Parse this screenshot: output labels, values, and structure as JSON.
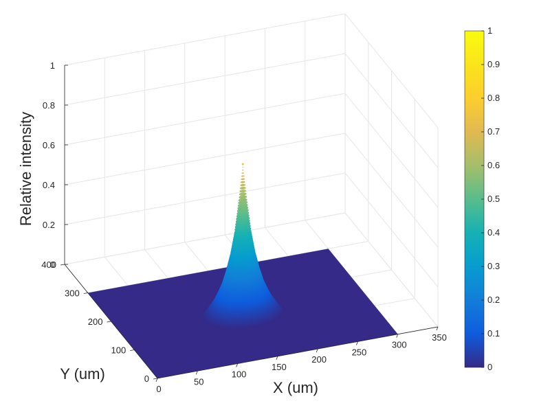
{
  "chart_data": {
    "type": "surface",
    "xlabel": "X (um)",
    "ylabel": "Y (um)",
    "zlabel": "Relative intensity",
    "x_ticks": [
      "0",
      "50",
      "100",
      "150",
      "200",
      "250",
      "300",
      "350"
    ],
    "y_ticks": [
      "0",
      "100",
      "200",
      "300",
      "400"
    ],
    "z_ticks": [
      "0",
      "0.2",
      "0.4",
      "0.6",
      "0.8",
      "1"
    ],
    "xlim": [
      0,
      350
    ],
    "ylim": [
      0,
      400
    ],
    "zlim": [
      0,
      1
    ],
    "colormap": "parula",
    "colorbar": {
      "ticks": [
        "0",
        "0.1",
        "0.2",
        "0.3",
        "0.4",
        "0.5",
        "0.6",
        "0.7",
        "0.8",
        "0.9",
        "1"
      ],
      "range": [
        0,
        1
      ]
    },
    "surface": {
      "x_extent": [
        0,
        300
      ],
      "y_extent": [
        0,
        300
      ],
      "peak_x": 150,
      "peak_y": 150,
      "peak_value": 0.75,
      "profile_r": [
        0,
        5,
        10,
        15,
        20,
        25,
        30,
        35,
        40,
        45,
        50
      ],
      "profile_z": [
        0.75,
        0.57,
        0.41,
        0.3,
        0.22,
        0.155,
        0.11,
        0.07,
        0.04,
        0.015,
        0.0
      ]
    },
    "grid": true
  }
}
